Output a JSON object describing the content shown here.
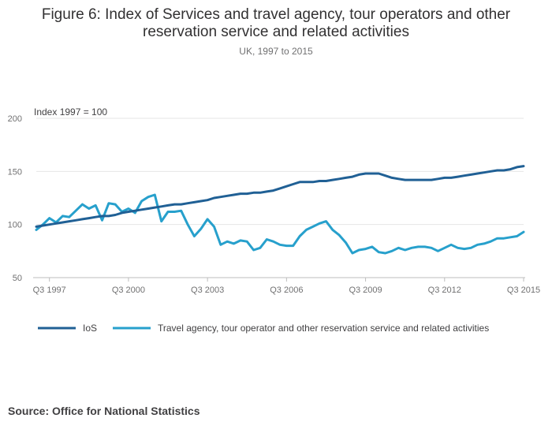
{
  "header": {
    "title": "Figure 6: Index of Services and travel agency, tour operators and other reservation service and related activities",
    "subtitle": "UK, 1997 to 2015"
  },
  "source": "Source: Office for National Statistics",
  "chart_data": {
    "type": "line",
    "title": "Figure 6: Index of Services and travel agency, tour operators and other reservation service and related activities",
    "subtitle": "UK, 1997 to 2015",
    "ylabel": "Index 1997 = 100",
    "xlabel": "",
    "ylim": [
      50,
      200
    ],
    "yticks": [
      50,
      100,
      150,
      200
    ],
    "grid": true,
    "legend_position": "bottom-left",
    "x_tick_labels": [
      "Q3 1997",
      "Q3 2000",
      "Q3 2003",
      "Q3 2006",
      "Q3 2009",
      "Q3 2012",
      "Q3 2015"
    ],
    "x_tick_quarter_index": [
      2,
      14,
      26,
      38,
      50,
      62,
      74
    ],
    "x_start": "Q1 1997",
    "x_end": "Q3 2015",
    "series": [
      {
        "name": "IoS",
        "color": "#206095",
        "values": [
          98,
          99,
          100,
          101,
          102,
          103,
          104,
          105,
          106,
          107,
          108,
          108,
          109,
          111,
          112,
          113,
          114,
          115,
          116,
          117,
          118,
          119,
          119,
          120,
          121,
          122,
          123,
          125,
          126,
          127,
          128,
          129,
          129,
          130,
          130,
          131,
          132,
          134,
          136,
          138,
          140,
          140,
          140,
          141,
          141,
          142,
          143,
          144,
          145,
          147,
          148,
          148,
          148,
          146,
          144,
          143,
          142,
          142,
          142,
          142,
          142,
          143,
          144,
          144,
          145,
          146,
          147,
          148,
          149,
          150,
          151,
          151,
          152,
          154,
          155
        ]
      },
      {
        "name": "Travel agency, tour operator and other reservation service and related activities",
        "color": "#27A0CC",
        "values": [
          95,
          100,
          106,
          102,
          108,
          107,
          113,
          119,
          115,
          118,
          104,
          120,
          119,
          112,
          115,
          111,
          122,
          126,
          128,
          103,
          112,
          112,
          113,
          100,
          89,
          96,
          105,
          98,
          81,
          84,
          82,
          85,
          84,
          76,
          78,
          86,
          84,
          81,
          80,
          80,
          89,
          95,
          98,
          101,
          103,
          95,
          90,
          83,
          73,
          76,
          77,
          79,
          74,
          73,
          75,
          78,
          76,
          78,
          79,
          79,
          78,
          75,
          78,
          81,
          78,
          77,
          78,
          81,
          82,
          84,
          87,
          87,
          88,
          89,
          93
        ]
      }
    ]
  }
}
